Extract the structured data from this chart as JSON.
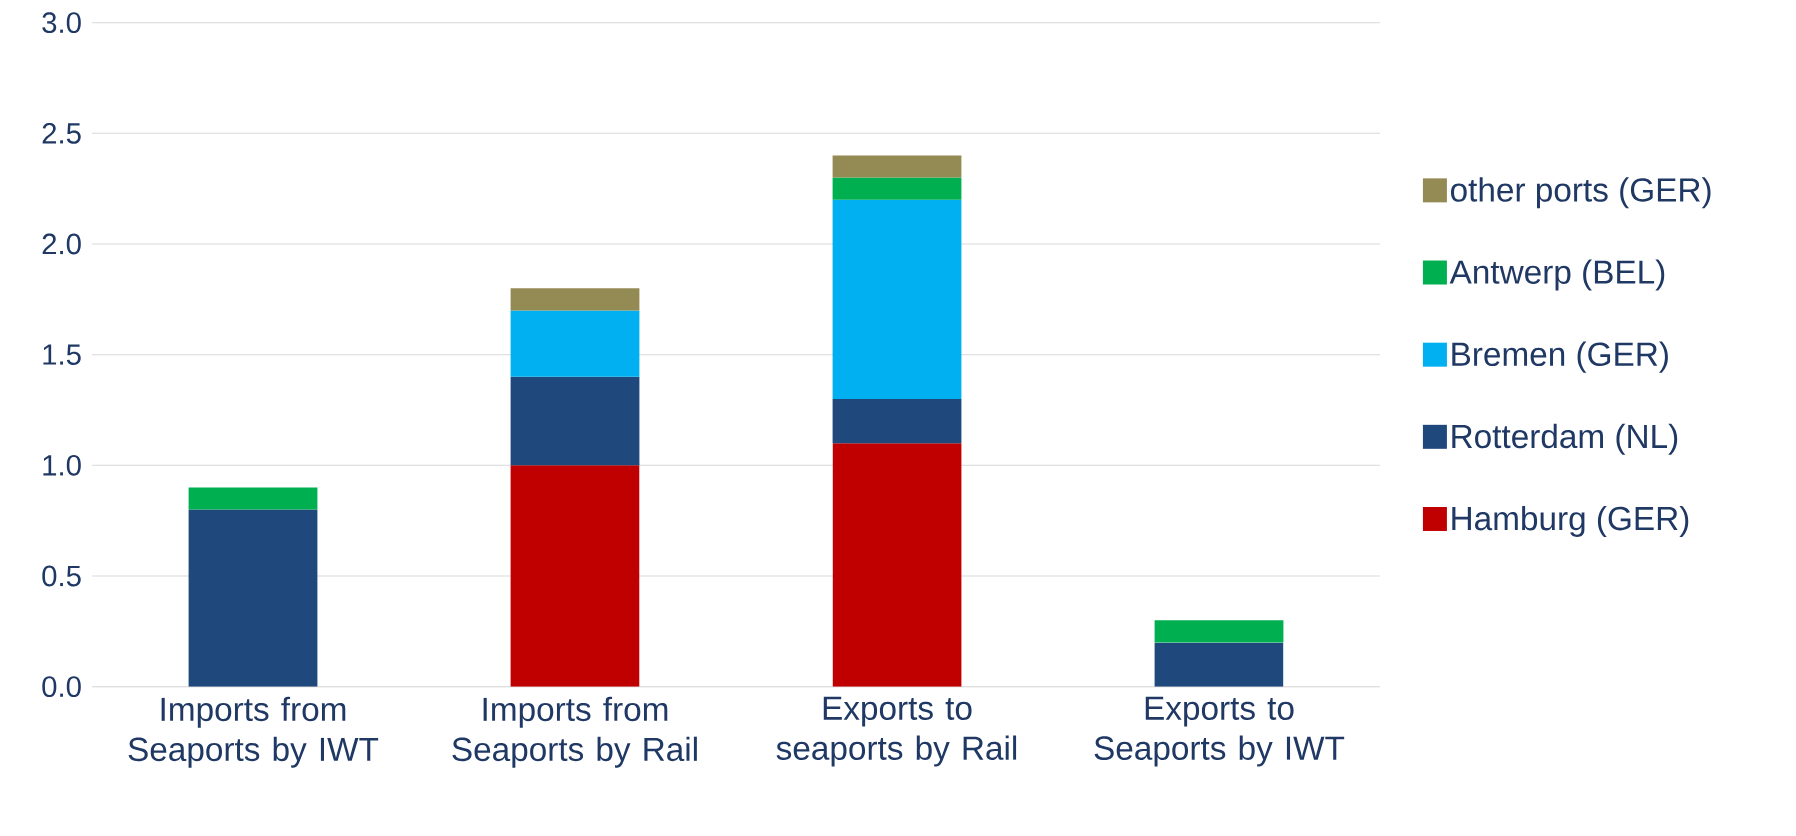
{
  "chart_data": {
    "type": "bar",
    "stacked": true,
    "categories": [
      "Imports from Seaports by IWT",
      "Imports from Seaports by Rail",
      "Exports to seaports by Rail",
      "Exports to Seaports by IWT"
    ],
    "series": [
      {
        "name": "Hamburg (GER)",
        "color": "#c00000",
        "values": [
          null,
          1.0,
          1.1,
          null
        ]
      },
      {
        "name": "Rotterdam (NL)",
        "color": "#1f497d",
        "values": [
          0.8,
          0.4,
          0.2,
          0.2
        ]
      },
      {
        "name": "Bremen (GER)",
        "color": "#00b0f0",
        "values": [
          null,
          0.3,
          0.9,
          null
        ]
      },
      {
        "name": "Antwerp (BEL)",
        "color": "#00b050",
        "values": [
          0.1,
          null,
          0.1,
          0.1
        ]
      },
      {
        "name": "other ports (GER)",
        "color": "#948a54",
        "values": [
          null,
          0.1,
          0.1,
          null
        ]
      }
    ],
    "ylim": [
      0,
      3.0
    ],
    "yticks": [
      {
        "value": 0,
        "label": "0.0"
      },
      {
        "value": 0.5,
        "label": "0.5"
      },
      {
        "value": 1.0,
        "label": "1.0"
      },
      {
        "value": 1.5,
        "label": "1.5"
      },
      {
        "value": 2.0,
        "label": "2.0"
      },
      {
        "value": 2.5,
        "label": "2.5"
      },
      {
        "value": 3.0,
        "label": "3.0"
      }
    ],
    "grid": "y",
    "legend": "right"
  }
}
